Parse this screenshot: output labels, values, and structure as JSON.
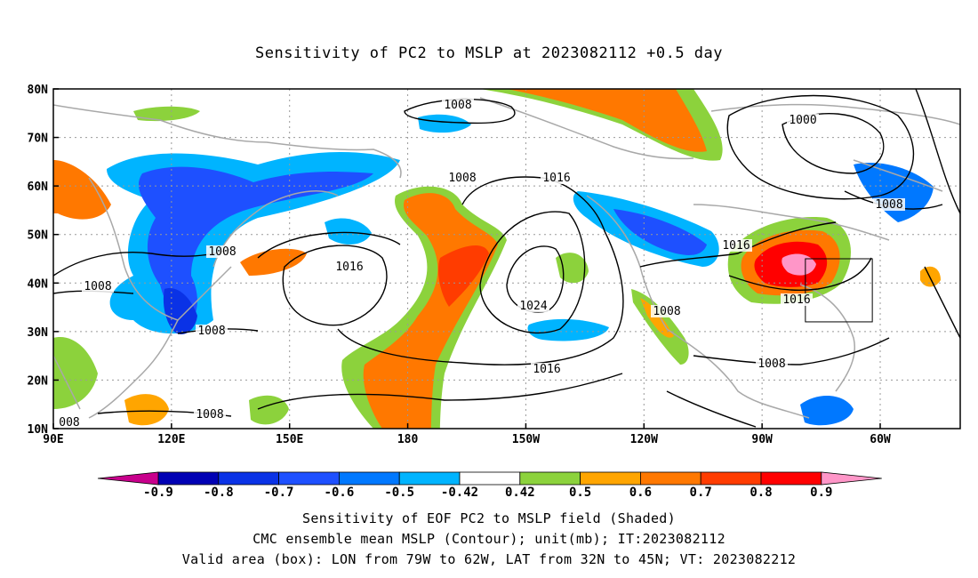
{
  "title": "Sensitivity of PC2 to MSLP at 2023082112 +0.5 day",
  "lat_labels": [
    "80N",
    "70N",
    "60N",
    "50N",
    "40N",
    "30N",
    "20N",
    "10N"
  ],
  "lon_labels": [
    "90E",
    "120E",
    "150E",
    "180",
    "150W",
    "120W",
    "90W",
    "60W"
  ],
  "contour_labels": [
    {
      "text": "1008",
      "key": "arctic_low"
    },
    {
      "text": "1008",
      "key": "bering"
    },
    {
      "text": "1016",
      "key": "gulf_alaska"
    },
    {
      "text": "1000",
      "key": "hudson"
    },
    {
      "text": "1008",
      "key": "labrador"
    },
    {
      "text": "1008",
      "key": "japan"
    },
    {
      "text": "1008",
      "key": "china"
    },
    {
      "text": "1016",
      "key": "west_pacific"
    },
    {
      "text": "1024",
      "key": "pacific_high"
    },
    {
      "text": "1016",
      "key": "pacific_south"
    },
    {
      "text": "1008",
      "key": "baja"
    },
    {
      "text": "1016",
      "key": "great_lakes"
    },
    {
      "text": "1016",
      "key": "east_coast"
    },
    {
      "text": "1008",
      "key": "gulf_mexico"
    },
    {
      "text": "1008",
      "key": "west_china"
    },
    {
      "text": "1008",
      "key": "scs"
    },
    {
      "text": "008",
      "key": "india"
    }
  ],
  "colorbar": {
    "labels": [
      "-0.9",
      "-0.8",
      "-0.7",
      "-0.6",
      "-0.5",
      "-0.42",
      "0.42",
      "0.5",
      "0.6",
      "0.7",
      "0.8",
      "0.9"
    ],
    "colors": [
      "#0000b4",
      "#0a32e6",
      "#1e50ff",
      "#0078ff",
      "#00b4ff",
      "#ffffff",
      "#8cd23c",
      "#ffa500",
      "#ff7800",
      "#ff3c00",
      "#ff0000"
    ],
    "low_color": "#c8008c",
    "high_color": "#ff96c8"
  },
  "valid_box": {
    "lon_w": -79,
    "lon_e": -62,
    "lat_s": 32,
    "lat_n": 45
  },
  "footer": [
    "Sensitivity of EOF PC2 to MSLP field (Shaded)",
    "CMC ensemble mean MSLP (Contour); unit(mb); IT:2023082112",
    "Valid area (box): LON from 79W to 62W, LAT from 32N to 45N; VT: 2023082212"
  ]
}
